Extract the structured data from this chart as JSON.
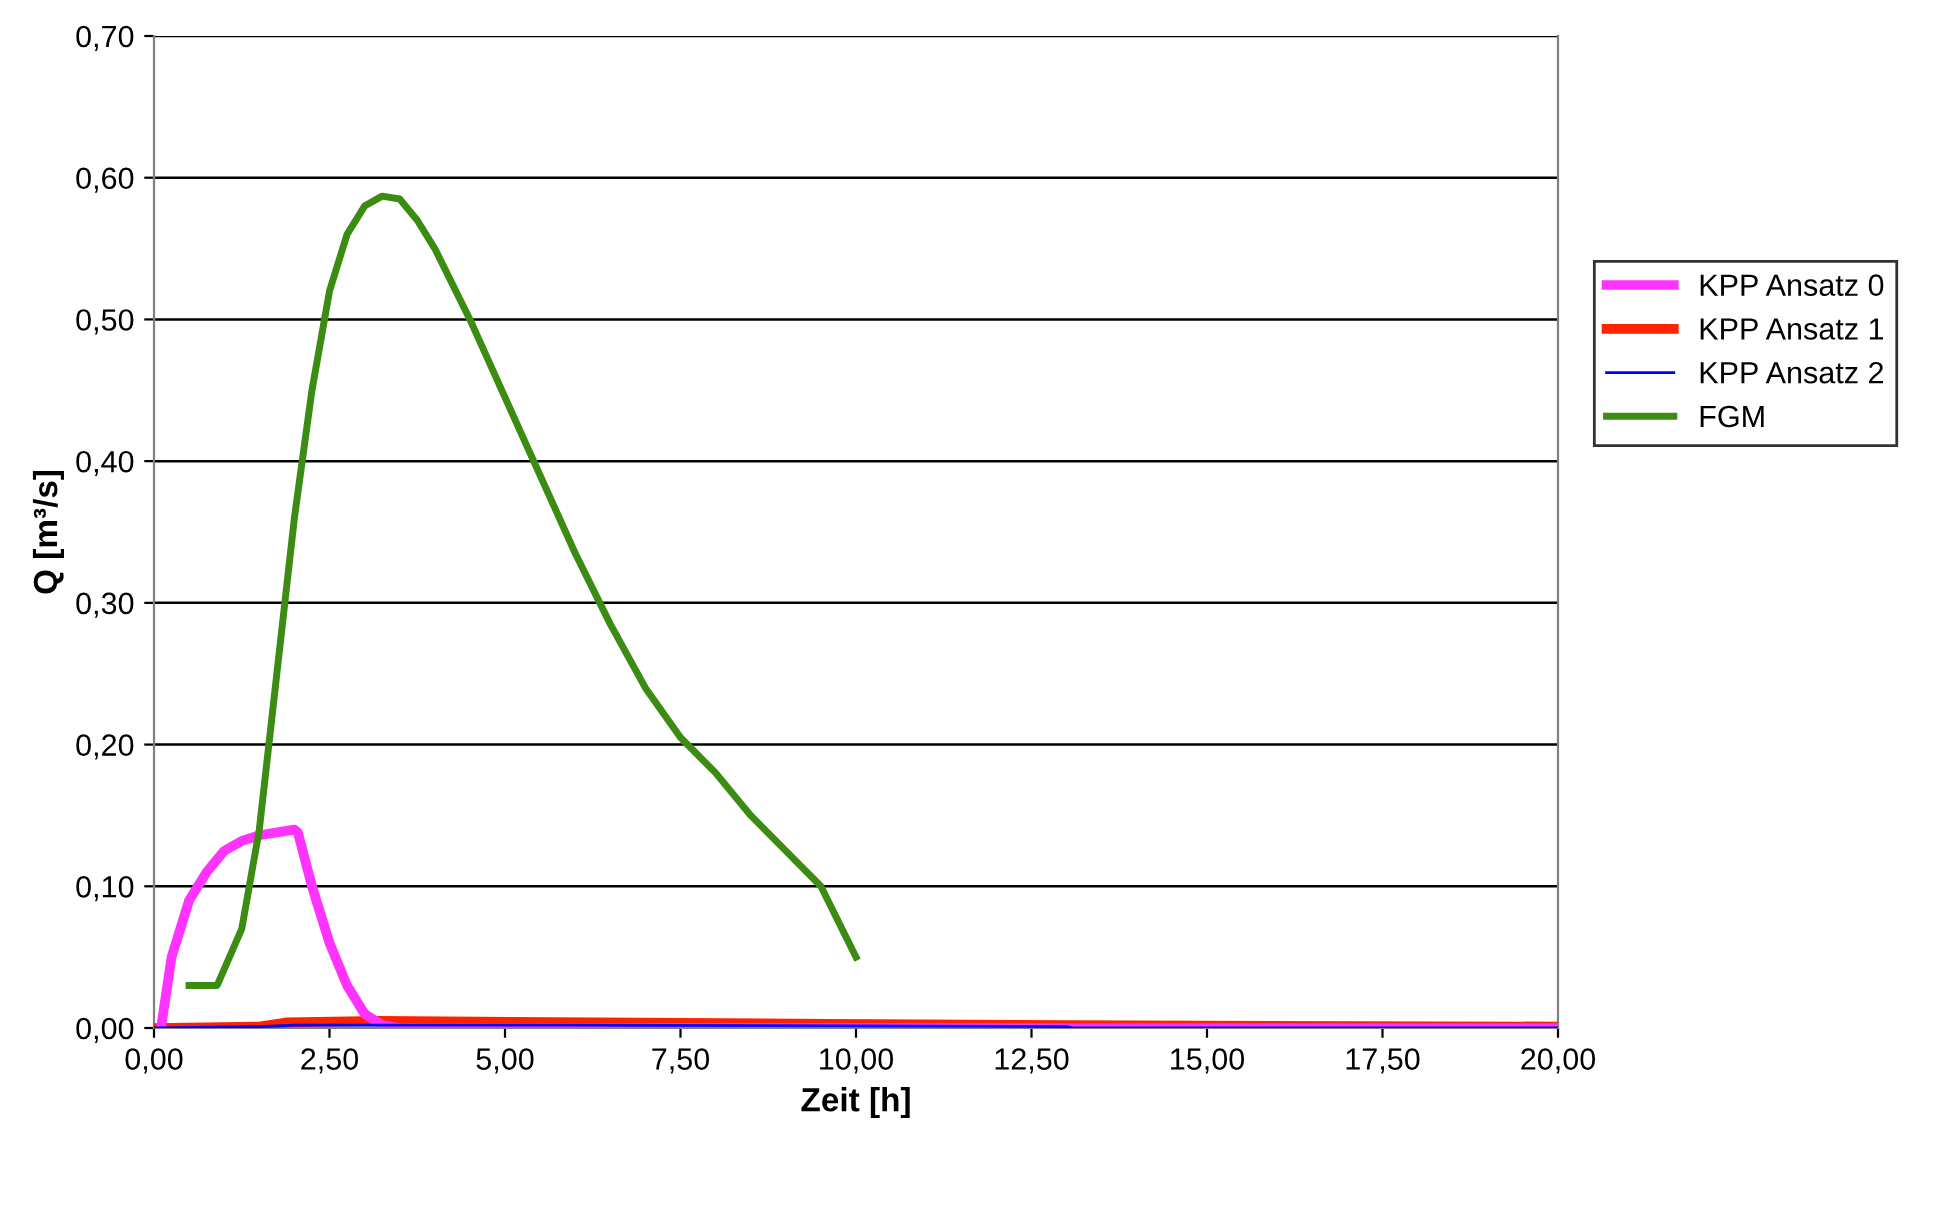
{
  "chart_data": {
    "type": "line",
    "xlabel": "Zeit [h]",
    "ylabel": "Q [m³/s]",
    "xlim": [
      0,
      20
    ],
    "xticks": [
      {
        "value": 0,
        "label": "0,00"
      },
      {
        "value": 2.5,
        "label": "2,50"
      },
      {
        "value": 5,
        "label": "5,00"
      },
      {
        "value": 7.5,
        "label": "7,50"
      },
      {
        "value": 10,
        "label": "10,00"
      },
      {
        "value": 12.5,
        "label": "12,50"
      },
      {
        "value": 15,
        "label": "15,00"
      },
      {
        "value": 17.5,
        "label": "17,50"
      },
      {
        "value": 20,
        "label": "20,00"
      }
    ],
    "ylim": [
      0,
      0.7
    ],
    "yticks": [
      {
        "value": 0,
        "label": "0,00"
      },
      {
        "value": 0.1,
        "label": "0,10"
      },
      {
        "value": 0.2,
        "label": "0,20"
      },
      {
        "value": 0.3,
        "label": "0,30"
      },
      {
        "value": 0.4,
        "label": "0,40"
      },
      {
        "value": 0.5,
        "label": "0,50"
      },
      {
        "value": 0.6,
        "label": "0,60"
      },
      {
        "value": 0.7,
        "label": "0,70"
      }
    ],
    "grid": "y",
    "legend": "right",
    "marker": "none",
    "line_style": "solid",
    "series": [
      {
        "name": "KPP Ansatz 0",
        "color": "#ff33ff",
        "x": [
          0.1,
          0.25,
          0.5,
          0.75,
          1.0,
          1.25,
          1.5,
          2.0,
          2.05,
          2.25,
          2.5,
          2.75,
          3.0,
          3.25,
          3.5,
          20
        ],
        "values": [
          0,
          0.05,
          0.09,
          0.11,
          0.125,
          0.132,
          0.136,
          0.14,
          0.138,
          0.1,
          0.06,
          0.03,
          0.01,
          0.002,
          0,
          0
        ]
      },
      {
        "name": "KPP Ansatz 1",
        "color": "#ff2200",
        "x": [
          0,
          1.5,
          1.9,
          3.2,
          6.3,
          9.6,
          13,
          20
        ],
        "values": [
          0,
          0.001,
          0.004,
          0.005,
          0.004,
          0.003,
          0.002,
          0.001
        ]
      },
      {
        "name": "KPP Ansatz 2",
        "color": "#0000ff",
        "x": [
          0,
          1.5,
          2,
          6,
          13,
          13.1,
          20
        ],
        "values": [
          0,
          0.001,
          0.002,
          0.002,
          0.001,
          0,
          0
        ]
      },
      {
        "name": "FGM",
        "color": "#3c8c14",
        "x": [
          0.5,
          0.9,
          1.25,
          1.5,
          1.75,
          2.0,
          2.25,
          2.5,
          2.75,
          3.0,
          3.25,
          3.5,
          3.75,
          4.0,
          4.5,
          5.0,
          5.5,
          6.0,
          6.5,
          7.0,
          7.5,
          8.0,
          8.5,
          9.0,
          9.5,
          10
        ],
        "values": [
          0.03,
          0.03,
          0.07,
          0.14,
          0.25,
          0.36,
          0.45,
          0.52,
          0.56,
          0.58,
          0.587,
          0.585,
          0.57,
          0.55,
          0.5,
          0.445,
          0.39,
          0.335,
          0.285,
          0.24,
          0.205,
          0.18,
          0.15,
          0.125,
          0.1,
          0.05
        ]
      }
    ]
  }
}
